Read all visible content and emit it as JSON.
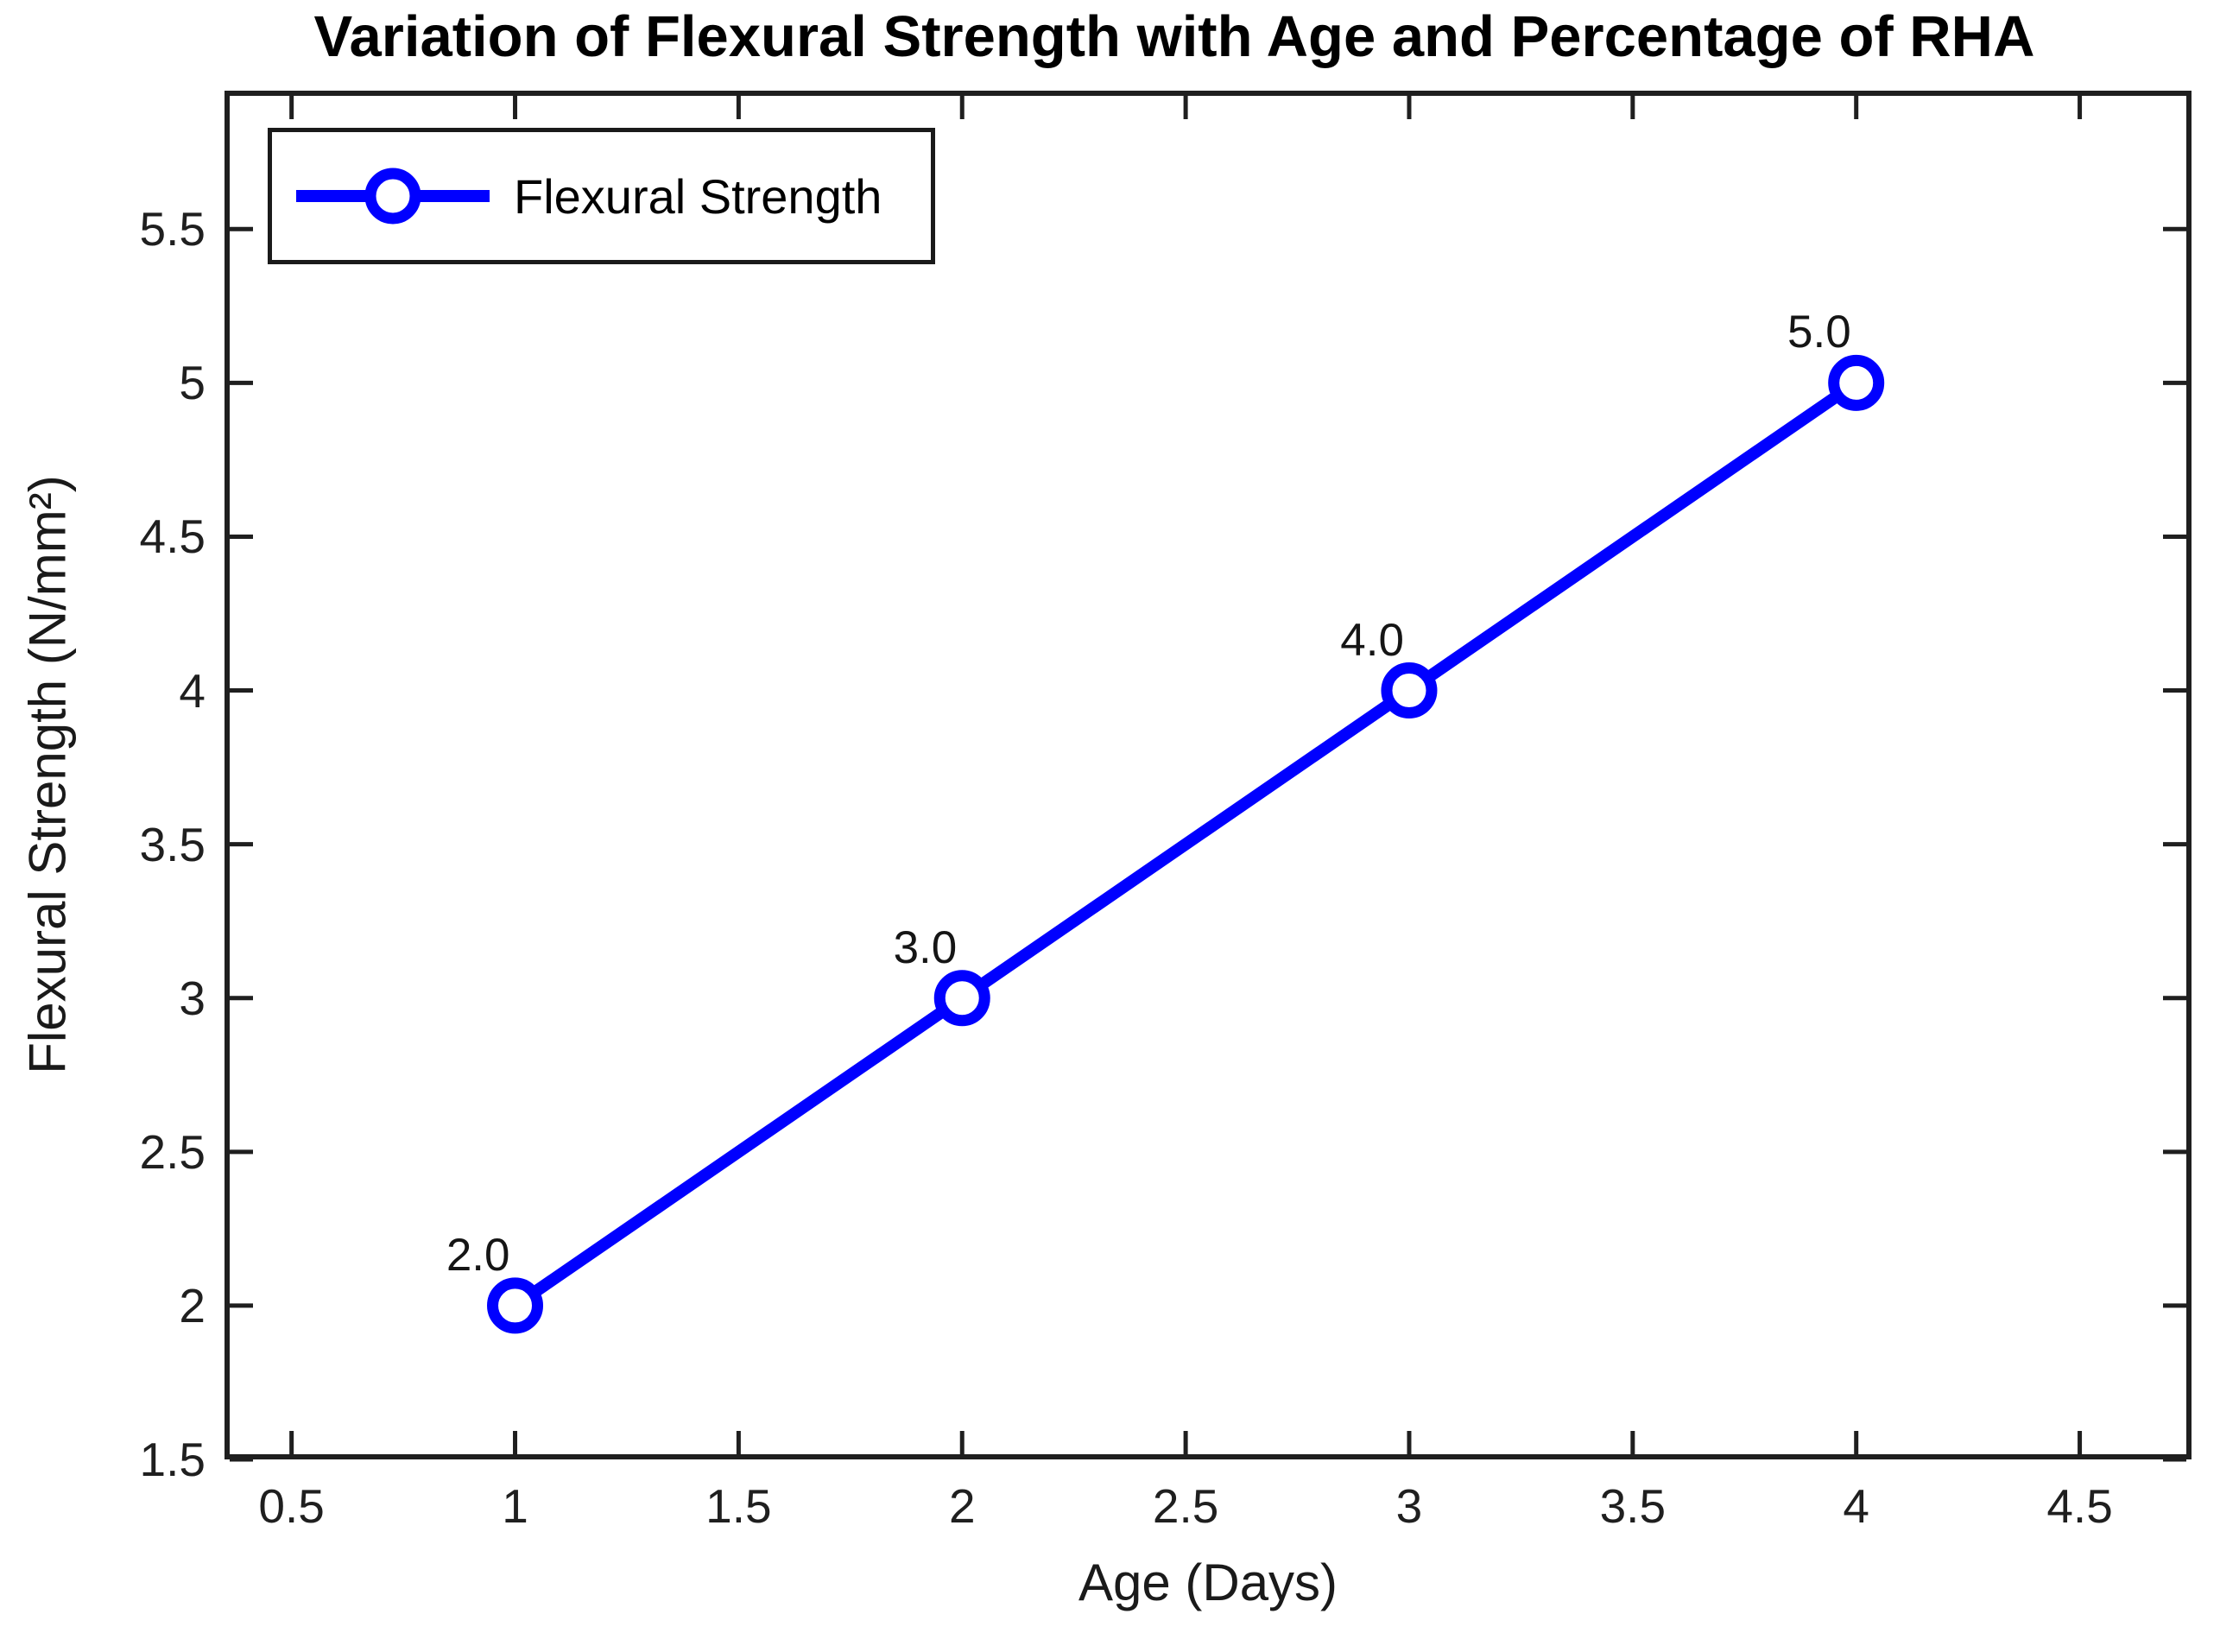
{
  "chart_data": {
    "type": "line",
    "title": "Variation of Flexural Strength with Age and Percentage of RHA",
    "xlabel": "Age (Days)",
    "ylabel": "Flexural Strength (N/mm²)",
    "series": [
      {
        "name": "Flexural Strength",
        "x": [
          1,
          2,
          3,
          4
        ],
        "y": [
          2,
          3,
          4,
          5
        ],
        "point_labels": [
          "2.0",
          "3.0",
          "4.0",
          "5.0"
        ],
        "color": "#0000ff",
        "marker": "open-circle"
      }
    ],
    "xlim": [
      0.35,
      4.75
    ],
    "ylim": [
      1.5,
      5.95
    ],
    "xticks": [
      0.5,
      1,
      1.5,
      2,
      2.5,
      3,
      3.5,
      4,
      4.5
    ],
    "xtick_labels": [
      "0.5",
      "1",
      "1.5",
      "2",
      "2.5",
      "3",
      "3.5",
      "4",
      "4.5"
    ],
    "yticks": [
      1.5,
      2,
      2.5,
      3,
      3.5,
      4,
      4.5,
      5,
      5.5
    ],
    "ytick_labels": [
      "1.5",
      "2",
      "2.5",
      "3",
      "3.5",
      "4",
      "4.5",
      "5",
      "5.5"
    ],
    "grid": false,
    "legend": {
      "position": "top-left",
      "entries": [
        "Flexural Strength"
      ]
    },
    "axis_color": "#1f1f1f",
    "text_color": "#000000",
    "background_color": "#ffffff"
  }
}
